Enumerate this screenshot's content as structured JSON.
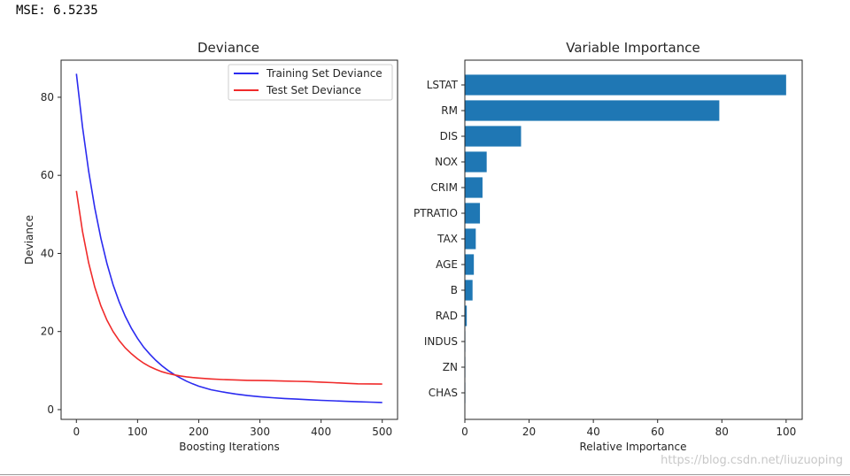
{
  "output_text": "MSE: 6.5235",
  "watermark": "https://blog.csdn.net/liuzuoping",
  "colors": {
    "train": "#2b2bf0",
    "test": "#f02b2b",
    "bar": "#1f77b4",
    "axis": "#262626"
  },
  "chart_data": [
    {
      "type": "line",
      "title": "Deviance",
      "xlabel": "Boosting Iterations",
      "ylabel": "Deviance",
      "xlim": [
        -25,
        525
      ],
      "ylim": [
        -2.5,
        89.5
      ],
      "xticks": [
        0,
        100,
        200,
        300,
        400,
        500
      ],
      "yticks": [
        0,
        20,
        40,
        60,
        80
      ],
      "legend": "top-right",
      "series": [
        {
          "name": "Training Set Deviance",
          "color": "#2b2bf0",
          "x": [
            0,
            10,
            20,
            30,
            40,
            50,
            60,
            70,
            80,
            90,
            100,
            110,
            120,
            130,
            140,
            150,
            160,
            170,
            180,
            190,
            200,
            220,
            240,
            260,
            280,
            300,
            320,
            340,
            360,
            380,
            400,
            420,
            440,
            460,
            480,
            500
          ],
          "y": [
            86,
            72.4,
            61.1,
            51.7,
            43.9,
            37.4,
            32.0,
            27.6,
            23.9,
            20.8,
            18.2,
            16.0,
            14.2,
            12.6,
            11.2,
            10.0,
            9.0,
            8.1,
            7.3,
            6.6,
            6.0,
            5.1,
            4.5,
            4.0,
            3.6,
            3.3,
            3.05,
            2.85,
            2.68,
            2.52,
            2.38,
            2.25,
            2.13,
            2.02,
            1.92,
            1.82
          ]
        },
        {
          "name": "Test Set Deviance",
          "color": "#f02b2b",
          "x": [
            0,
            10,
            20,
            30,
            40,
            50,
            60,
            70,
            80,
            90,
            100,
            110,
            120,
            130,
            140,
            150,
            160,
            170,
            180,
            190,
            200,
            220,
            240,
            260,
            280,
            300,
            320,
            340,
            360,
            380,
            400,
            420,
            440,
            460,
            480,
            500
          ],
          "y": [
            56,
            45.6,
            37.6,
            31.4,
            26.6,
            22.9,
            20.0,
            17.7,
            15.8,
            14.3,
            13.0,
            11.9,
            11.0,
            10.3,
            9.7,
            9.25,
            8.9,
            8.62,
            8.4,
            8.22,
            8.08,
            7.85,
            7.7,
            7.6,
            7.5,
            7.45,
            7.4,
            7.32,
            7.25,
            7.18,
            7.05,
            6.9,
            6.75,
            6.62,
            6.58,
            6.55
          ]
        }
      ]
    },
    {
      "type": "bar",
      "orientation": "horizontal",
      "title": "Variable Importance",
      "xlabel": "Relative Importance",
      "ylabel": "",
      "xlim": [
        0,
        105
      ],
      "xticks": [
        0,
        20,
        40,
        60,
        80,
        100
      ],
      "categories": [
        "LSTAT",
        "RM",
        "DIS",
        "NOX",
        "CRIM",
        "PTRATIO",
        "TAX",
        "AGE",
        "B",
        "RAD",
        "INDUS",
        "ZN",
        "CHAS"
      ],
      "values": [
        100,
        79.2,
        17.5,
        6.8,
        5.5,
        4.7,
        3.4,
        2.8,
        2.4,
        0.6,
        0.15,
        0.1,
        0.05
      ]
    }
  ]
}
